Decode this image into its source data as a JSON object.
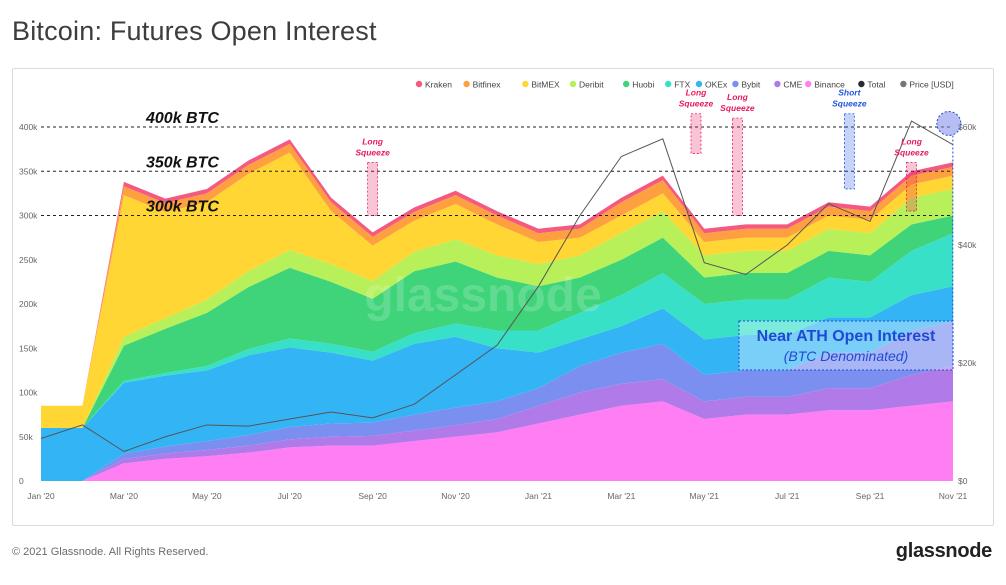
{
  "page": {
    "title": "Bitcoin: Futures Open Interest",
    "copyright": "© 2021 Glassnode. All Rights Reserved.",
    "brand": "glassnode",
    "watermark": "glassnode"
  },
  "chart_data": {
    "type": "area",
    "stacked": true,
    "title": "Bitcoin: Futures Open Interest",
    "legend_position": "top-right",
    "grid": false,
    "x_ticks": [
      "Jan '20",
      "Mar '20",
      "May '20",
      "Jul '20",
      "Sep '20",
      "Nov '20",
      "Jan '21",
      "Mar '21",
      "May '21",
      "Jul '21",
      "Sep '21",
      "Nov '21"
    ],
    "y_ticks": [
      "0",
      "50k",
      "100k",
      "150k",
      "200k",
      "250k",
      "300k",
      "350k",
      "400k"
    ],
    "y2_ticks": [
      "$0",
      "$20k",
      "$40k",
      "$60k"
    ],
    "ylim": [
      0,
      400000
    ],
    "y2lim": [
      0,
      60000
    ],
    "x": [
      "Jan '20",
      "Feb '20",
      "Mar '20",
      "Apr '20",
      "May '20",
      "Jun '20",
      "Jul '20",
      "Aug '20",
      "Sep '20",
      "Oct '20",
      "Nov '20",
      "Dec '20",
      "Jan '21",
      "Feb '21",
      "Mar '21",
      "Apr '21",
      "May '21",
      "Jun '21",
      "Jul '21",
      "Aug '21",
      "Sep '21",
      "Oct '21",
      "Nov '21"
    ],
    "series": [
      {
        "name": "Binance",
        "color": "#ff7ef3",
        "values": [
          0,
          0,
          20000,
          25000,
          28000,
          32000,
          38000,
          40000,
          40000,
          45000,
          50000,
          55000,
          65000,
          75000,
          85000,
          90000,
          70000,
          75000,
          75000,
          80000,
          80000,
          85000,
          90000
        ]
      },
      {
        "name": "CME",
        "color": "#b07be8",
        "values": [
          0,
          0,
          5000,
          6000,
          7000,
          8000,
          9000,
          10000,
          11000,
          12000,
          13000,
          15000,
          20000,
          25000,
          25000,
          25000,
          20000,
          20000,
          20000,
          25000,
          25000,
          35000,
          40000
        ]
      },
      {
        "name": "Bybit",
        "color": "#7a8ff0",
        "values": [
          0,
          0,
          6000,
          8000,
          10000,
          12000,
          14000,
          15000,
          15000,
          18000,
          20000,
          20000,
          20000,
          30000,
          35000,
          40000,
          30000,
          30000,
          30000,
          40000,
          40000,
          50000,
          50000
        ]
      },
      {
        "name": "OKEx",
        "color": "#33b5f5",
        "values": [
          60000,
          60000,
          80000,
          80000,
          80000,
          90000,
          90000,
          80000,
          70000,
          80000,
          80000,
          60000,
          40000,
          30000,
          30000,
          40000,
          40000,
          40000,
          40000,
          40000,
          40000,
          40000,
          40000
        ]
      },
      {
        "name": "FTX",
        "color": "#38e0c8",
        "values": [
          0,
          0,
          2000,
          3000,
          5000,
          7000,
          10000,
          10000,
          10000,
          12000,
          15000,
          20000,
          25000,
          30000,
          35000,
          40000,
          40000,
          40000,
          40000,
          45000,
          40000,
          50000,
          60000
        ]
      },
      {
        "name": "Huobi",
        "color": "#3fd47a",
        "values": [
          0,
          0,
          40000,
          50000,
          60000,
          70000,
          80000,
          70000,
          60000,
          70000,
          70000,
          60000,
          50000,
          40000,
          40000,
          40000,
          30000,
          30000,
          30000,
          30000,
          30000,
          30000,
          20000
        ]
      },
      {
        "name": "Deribit",
        "color": "#b8f05a",
        "values": [
          0,
          0,
          10000,
          12000,
          15000,
          18000,
          20000,
          20000,
          20000,
          22000,
          25000,
          25000,
          25000,
          25000,
          30000,
          30000,
          25000,
          25000,
          25000,
          25000,
          25000,
          30000,
          30000
        ]
      },
      {
        "name": "BitMEX",
        "color": "#ffd633",
        "values": [
          25000,
          25000,
          160000,
          120000,
          110000,
          110000,
          110000,
          60000,
          40000,
          35000,
          40000,
          35000,
          25000,
          20000,
          20000,
          20000,
          15000,
          15000,
          15000,
          15000,
          15000,
          15000,
          15000
        ]
      },
      {
        "name": "Bitfinex",
        "color": "#ffa040",
        "values": [
          0,
          0,
          10000,
          10000,
          10000,
          10000,
          10000,
          10000,
          10000,
          10000,
          10000,
          10000,
          10000,
          10000,
          15000,
          15000,
          10000,
          10000,
          10000,
          10000,
          10000,
          10000,
          10000
        ]
      },
      {
        "name": "Kraken",
        "color": "#f45a80",
        "values": [
          0,
          0,
          5000,
          5000,
          5000,
          5000,
          5000,
          5000,
          5000,
          5000,
          5000,
          5000,
          5000,
          5000,
          5000,
          5000,
          5000,
          5000,
          5000,
          5000,
          5000,
          5000,
          5000
        ]
      }
    ],
    "price_series": {
      "name": "Price [USD]",
      "color": "#555555",
      "values": [
        7200,
        9500,
        5000,
        7500,
        9500,
        9300,
        10500,
        11700,
        10700,
        13000,
        18000,
        23000,
        33000,
        45000,
        55000,
        58000,
        37000,
        35000,
        40000,
        47000,
        44000,
        61000,
        57000
      ]
    },
    "legend": [
      {
        "name": "Kraken",
        "color": "#f45a80"
      },
      {
        "name": "Bitfinex",
        "color": "#ffa040"
      },
      {
        "name": "BitMEX",
        "color": "#ffd633"
      },
      {
        "name": "Deribit",
        "color": "#b8f05a"
      },
      {
        "name": "Huobi",
        "color": "#3fd47a"
      },
      {
        "name": "FTX",
        "color": "#38e0c8"
      },
      {
        "name": "OKEx",
        "color": "#33b5f5"
      },
      {
        "name": "Bybit",
        "color": "#7a8ff0"
      },
      {
        "name": "CME",
        "color": "#b07be8"
      },
      {
        "name": "Binance",
        "color": "#ff7ef3"
      },
      {
        "name": "Total",
        "color": "#2b2b2b"
      },
      {
        "name": "Price [USD]",
        "color": "#777777"
      }
    ],
    "reference_lines": [
      {
        "value": 400000,
        "label": "400k BTC"
      },
      {
        "value": 350000,
        "label": "350k BTC"
      },
      {
        "value": 300000,
        "label": "300k BTC"
      }
    ],
    "squeeze_annotations": [
      {
        "label": [
          "Long",
          "Squeeze"
        ],
        "x": 8.0,
        "top": 360000,
        "bottom": 300000,
        "color": "#e8195b"
      },
      {
        "label": [
          "Long",
          "Squeeze"
        ],
        "x": 15.8,
        "top": 415000,
        "bottom": 370000,
        "color": "#e8195b"
      },
      {
        "label": [
          "Long",
          "Squeeze"
        ],
        "x": 16.8,
        "top": 410000,
        "bottom": 300000,
        "color": "#e8195b"
      },
      {
        "label": [
          "Short",
          "Squeeze"
        ],
        "x": 19.5,
        "top": 415000,
        "bottom": 330000,
        "color": "#1f55e0"
      },
      {
        "label": [
          "Long",
          "Squeeze"
        ],
        "x": 21.0,
        "top": 360000,
        "bottom": 305000,
        "color": "#e8195b"
      }
    ],
    "annotation": {
      "title": "Near ATH Open Interest",
      "subtitle": "(BTC Denominated)",
      "color": "#1f4ad6"
    }
  }
}
